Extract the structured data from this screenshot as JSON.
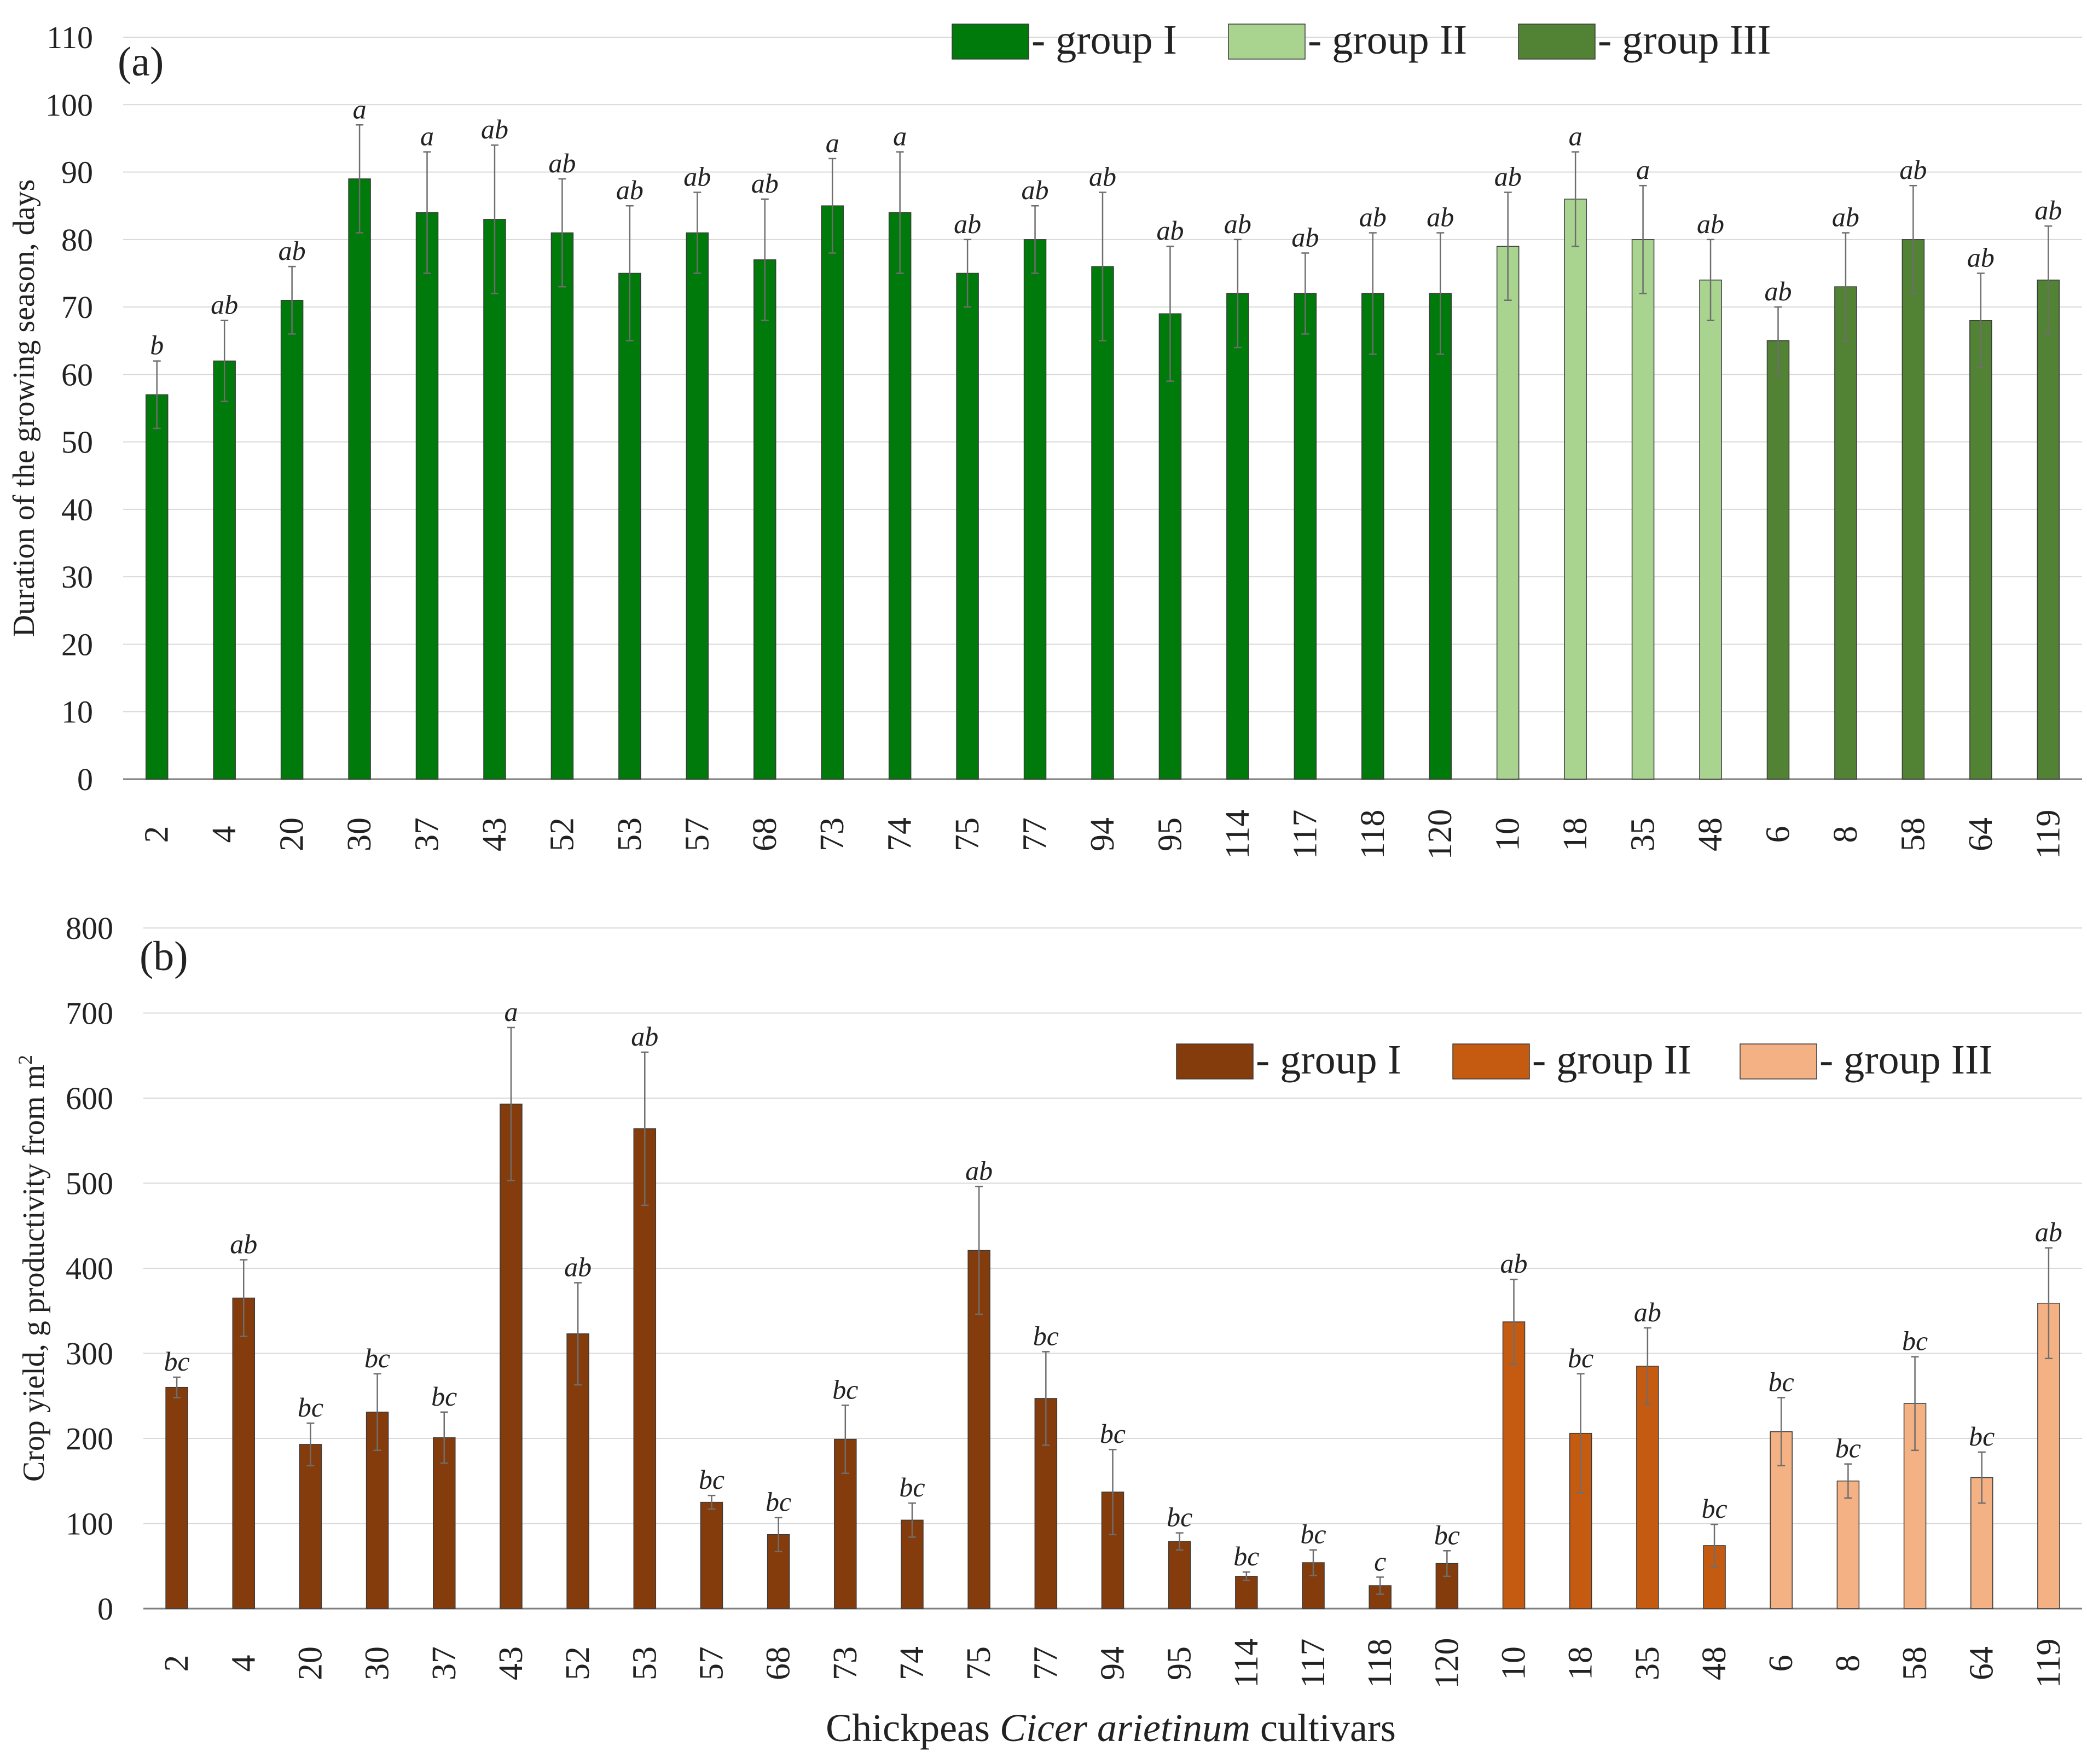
{
  "colors": {
    "grid": "#d9d9d9",
    "axis": "#7f7f7f",
    "error_bar": "#6e6e6e",
    "bar_outline": "#3a3a3a"
  },
  "x_title_parts": [
    {
      "text": "Chickpeas ",
      "italic": false
    },
    {
      "text": "Cicer arietinum",
      "italic": true
    },
    {
      "text": " cultivars",
      "italic": false
    }
  ],
  "chart_data": [
    {
      "type": "bar",
      "panel_label": "(a)",
      "ylabel": "Duration of the growing season,  days",
      "ylim": [
        0,
        110
      ],
      "y_ticks": [
        0,
        10,
        20,
        30,
        40,
        50,
        60,
        70,
        80,
        90,
        100,
        110
      ],
      "grid": true,
      "legend_position": "top-right",
      "categories": [
        "2",
        "4",
        "20",
        "30",
        "37",
        "43",
        "52",
        "53",
        "57",
        "68",
        "73",
        "74",
        "75",
        "77",
        "94",
        "95",
        "114",
        "117",
        "118",
        "120",
        "10",
        "18",
        "35",
        "48",
        "6",
        "8",
        "58",
        "64",
        "119"
      ],
      "values": [
        57,
        62,
        71,
        89,
        84,
        83,
        81,
        75,
        81,
        77,
        85,
        84,
        75,
        80,
        76,
        69,
        72,
        72,
        72,
        72,
        79,
        86,
        80,
        74,
        65,
        73,
        80,
        68,
        74
      ],
      "errors": [
        5,
        6,
        5,
        8,
        9,
        11,
        8,
        10,
        6,
        9,
        7,
        9,
        5,
        5,
        11,
        10,
        8,
        6,
        9,
        9,
        8,
        7,
        8,
        6,
        5,
        8,
        8,
        7,
        8
      ],
      "letters": [
        "b",
        "ab",
        "ab",
        "a",
        "a",
        "ab",
        "ab",
        "ab",
        "ab",
        "ab",
        "a",
        "a",
        "ab",
        "ab",
        "ab",
        "ab",
        "ab",
        "ab",
        "ab",
        "ab",
        "ab",
        "a",
        "a",
        "ab",
        "ab",
        "ab",
        "ab",
        "ab",
        "ab"
      ],
      "groups": [
        0,
        0,
        0,
        0,
        0,
        0,
        0,
        0,
        0,
        0,
        0,
        0,
        0,
        0,
        0,
        0,
        0,
        0,
        0,
        0,
        1,
        1,
        1,
        1,
        2,
        2,
        2,
        2,
        2
      ],
      "series": [
        {
          "name": "- group I",
          "color": "#007a0a"
        },
        {
          "name": "- group II",
          "color": "#a8d48f"
        },
        {
          "name": "- group III",
          "color": "#528233"
        }
      ]
    },
    {
      "type": "bar",
      "panel_label": "(b)",
      "ylabel": "Crop yield, g productivity from  m",
      "ylabel_sup": "2",
      "ylim": [
        0,
        800
      ],
      "y_ticks": [
        0,
        100,
        200,
        300,
        400,
        500,
        600,
        700,
        800
      ],
      "grid": true,
      "legend_position": "top-right",
      "categories": [
        "2",
        "4",
        "20",
        "30",
        "37",
        "43",
        "52",
        "53",
        "57",
        "68",
        "73",
        "74",
        "75",
        "77",
        "94",
        "95",
        "114",
        "117",
        "118",
        "120",
        "10",
        "18",
        "35",
        "48",
        "6",
        "8",
        "58",
        "64",
        "119"
      ],
      "values": [
        260,
        365,
        193,
        231,
        201,
        593,
        323,
        564,
        125,
        87,
        199,
        104,
        421,
        247,
        137,
        79,
        38,
        54,
        27,
        53,
        337,
        206,
        285,
        74,
        208,
        150,
        241,
        154,
        359
      ],
      "errors": [
        12,
        45,
        25,
        45,
        30,
        90,
        60,
        90,
        8,
        20,
        40,
        20,
        75,
        55,
        50,
        10,
        5,
        15,
        10,
        15,
        50,
        70,
        45,
        25,
        40,
        20,
        55,
        30,
        65
      ],
      "letters": [
        "bc",
        "ab",
        "bc",
        "bc",
        "bc",
        "a",
        "ab",
        "ab",
        "bc",
        "bc",
        "bc",
        "bc",
        "ab",
        "bc",
        "bc",
        "bc",
        "bc",
        "bc",
        "c",
        "bc",
        "ab",
        "bc",
        "ab",
        "bc",
        "bc",
        "bc",
        "bc",
        "bc",
        "ab"
      ],
      "groups": [
        0,
        0,
        0,
        0,
        0,
        0,
        0,
        0,
        0,
        0,
        0,
        0,
        0,
        0,
        0,
        0,
        0,
        0,
        0,
        0,
        1,
        1,
        1,
        1,
        2,
        2,
        2,
        2,
        2
      ],
      "series": [
        {
          "name": "- group I",
          "color": "#843c0c"
        },
        {
          "name": "- group II",
          "color": "#c55a11"
        },
        {
          "name": "- group III",
          "color": "#f4b183"
        }
      ]
    }
  ]
}
